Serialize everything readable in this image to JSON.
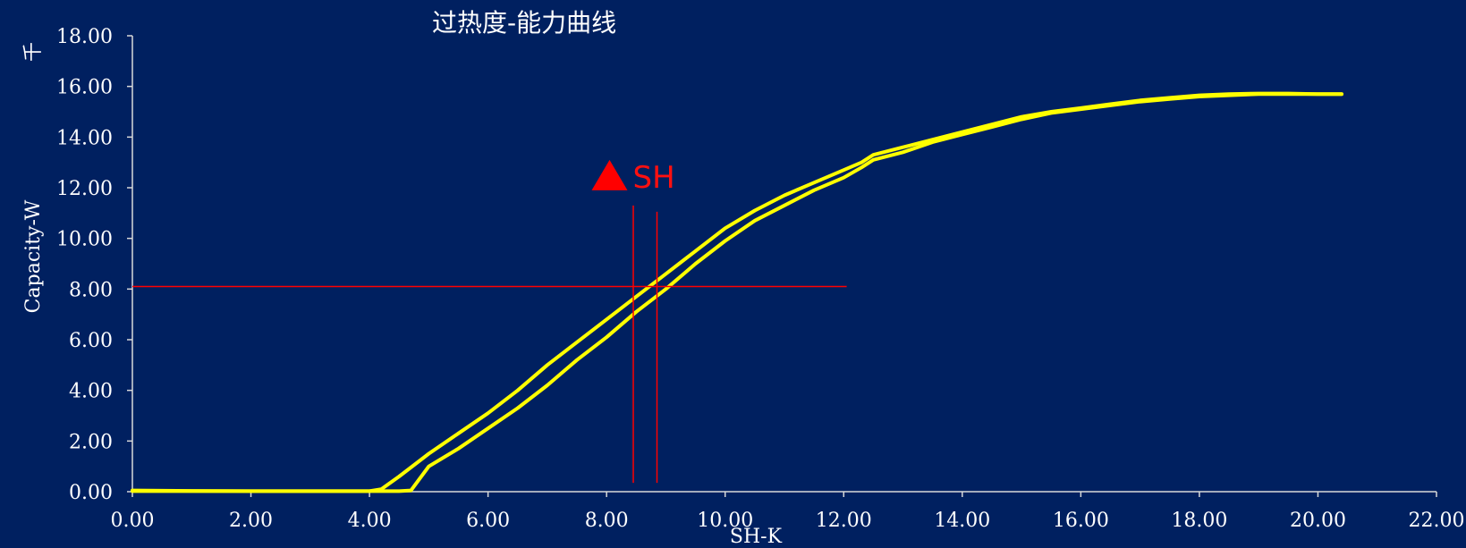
{
  "chart_data": {
    "type": "line",
    "title": "过热度-能力曲线",
    "xlabel": "SH-K",
    "ylabel": "Capacity-W",
    "ylabel_unit": "千",
    "xlim": [
      0,
      22
    ],
    "ylim": [
      0,
      18
    ],
    "x_ticks": [
      "0.00",
      "2.00",
      "4.00",
      "6.00",
      "8.00",
      "10.00",
      "12.00",
      "14.00",
      "16.00",
      "18.00",
      "20.00",
      "22.00"
    ],
    "y_ticks": [
      "0.00",
      "2.00",
      "4.00",
      "6.00",
      "8.00",
      "10.00",
      "12.00",
      "14.00",
      "16.00",
      "18.00"
    ],
    "grid": false,
    "legend": "none",
    "series": [
      {
        "color": "#ffff00",
        "x": [
          0,
          1,
          2,
          3,
          4,
          4.2,
          4.5,
          5,
          5.5,
          6,
          6.5,
          7,
          7.5,
          8,
          8.5,
          9,
          9.5,
          10,
          10.5,
          11,
          11.5,
          12,
          12.3,
          12.5,
          13,
          13.5,
          14,
          14.5,
          15,
          15.5,
          16,
          16.5,
          17,
          17.5,
          18,
          18.5,
          19,
          19.5,
          20,
          20.4
        ],
        "y": [
          0.05,
          0.03,
          0.02,
          0.02,
          0.02,
          0.1,
          0.6,
          1.5,
          2.3,
          3.1,
          4.0,
          5.0,
          5.9,
          6.8,
          7.7,
          8.6,
          9.5,
          10.4,
          11.1,
          11.7,
          12.2,
          12.7,
          13.0,
          13.3,
          13.6,
          13.9,
          14.2,
          14.5,
          14.8,
          15.0,
          15.15,
          15.3,
          15.45,
          15.55,
          15.65,
          15.7,
          15.72,
          15.72,
          15.7,
          15.7
        ]
      },
      {
        "color": "#ffff00",
        "x": [
          0,
          1,
          2,
          3,
          4,
          4.5,
          4.7,
          5,
          5.5,
          6,
          6.5,
          7,
          7.5,
          8,
          8.5,
          9,
          9.5,
          10,
          10.5,
          11,
          11.5,
          12,
          12.3,
          12.5,
          13,
          13.5,
          14,
          14.5,
          15,
          15.5,
          16,
          16.5,
          17,
          17.5,
          18,
          18.5,
          19,
          19.5,
          20,
          20.4
        ],
        "y": [
          0.02,
          0.02,
          0.02,
          0.02,
          0.02,
          0.02,
          0.05,
          1.0,
          1.7,
          2.5,
          3.3,
          4.2,
          5.2,
          6.1,
          7.1,
          8.0,
          9.0,
          9.9,
          10.7,
          11.3,
          11.9,
          12.4,
          12.8,
          13.1,
          13.4,
          13.8,
          14.1,
          14.4,
          14.7,
          14.95,
          15.1,
          15.25,
          15.4,
          15.5,
          15.6,
          15.65,
          15.7,
          15.7,
          15.7,
          15.7
        ]
      }
    ],
    "annotations": {
      "marker_label": "SH",
      "marker_color": "#ff0000",
      "marker_x": 8.05,
      "marker_y": 12.5,
      "hline_y": 8.1,
      "hline_x_range": [
        0,
        12.05
      ],
      "vlines": [
        {
          "x": 8.45,
          "y_range": [
            0.35,
            11.3
          ]
        },
        {
          "x": 8.85,
          "y_range": [
            0.35,
            11.05
          ]
        }
      ]
    }
  }
}
